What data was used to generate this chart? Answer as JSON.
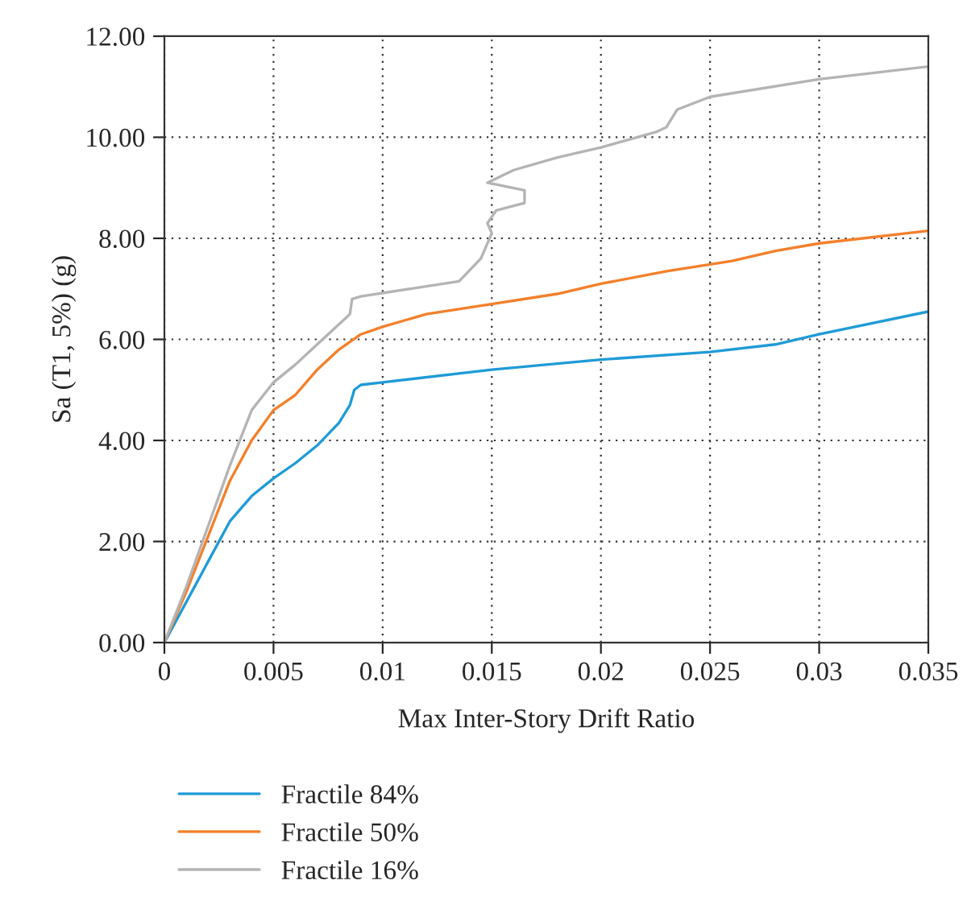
{
  "chart_data": {
    "type": "line",
    "xlabel": "Max Inter-Story Drift Ratio",
    "ylabel": "Sa (T1, 5%) (g)",
    "xlim": [
      0,
      0.035
    ],
    "xticks": [
      0,
      0.005,
      0.01,
      0.015,
      0.02,
      0.025,
      0.03,
      0.035
    ],
    "ylim": [
      0,
      12
    ],
    "yticks": [
      {
        "value": 0,
        "label": "0.00"
      },
      {
        "value": 2,
        "label": "2.00"
      },
      {
        "value": 4,
        "label": "4.00"
      },
      {
        "value": 6,
        "label": "6.00"
      },
      {
        "value": 8,
        "label": "8.00"
      },
      {
        "value": 10,
        "label": "10.00"
      },
      {
        "value": 12,
        "label": "12.00"
      }
    ],
    "grid": true,
    "legend": "bottom",
    "marker": "none",
    "line_style": "solid",
    "series": [
      {
        "name": "Fractile 84%",
        "color": "#1f9bd7",
        "x": [
          0,
          0.001,
          0.002,
          0.003,
          0.004,
          0.005,
          0.006,
          0.007,
          0.008,
          0.0085,
          0.0087,
          0.009,
          0.01,
          0.015,
          0.02,
          0.025,
          0.028,
          0.03,
          0.035
        ],
        "values": [
          0,
          0.8,
          1.6,
          2.4,
          2.9,
          3.25,
          3.55,
          3.9,
          4.35,
          4.7,
          5.0,
          5.1,
          5.15,
          5.4,
          5.6,
          5.75,
          5.9,
          6.1,
          6.55
        ]
      },
      {
        "name": "Fractile 50%",
        "color": "#f47f2a",
        "x": [
          0,
          0.001,
          0.002,
          0.003,
          0.004,
          0.005,
          0.006,
          0.007,
          0.008,
          0.0085,
          0.009,
          0.01,
          0.012,
          0.015,
          0.018,
          0.02,
          0.023,
          0.026,
          0.028,
          0.03,
          0.035
        ],
        "values": [
          0,
          1.0,
          2.1,
          3.2,
          4.0,
          4.6,
          4.9,
          5.4,
          5.8,
          5.95,
          6.1,
          6.25,
          6.5,
          6.7,
          6.9,
          7.1,
          7.35,
          7.55,
          7.75,
          7.9,
          8.15
        ]
      },
      {
        "name": "Fractile 16%",
        "color": "#b4b4b4",
        "x": [
          0,
          0.001,
          0.002,
          0.003,
          0.004,
          0.005,
          0.006,
          0.007,
          0.008,
          0.0085,
          0.0086,
          0.009,
          0.012,
          0.0135,
          0.0145,
          0.015,
          0.0148,
          0.0152,
          0.0165,
          0.0165,
          0.0148,
          0.016,
          0.018,
          0.02,
          0.0225,
          0.023,
          0.0235,
          0.025,
          0.03,
          0.035
        ],
        "values": [
          0,
          1.1,
          2.3,
          3.5,
          4.6,
          5.15,
          5.5,
          5.9,
          6.3,
          6.5,
          6.8,
          6.85,
          7.05,
          7.15,
          7.6,
          8.1,
          8.3,
          8.55,
          8.7,
          8.95,
          9.1,
          9.35,
          9.6,
          9.8,
          10.1,
          10.2,
          10.55,
          10.8,
          11.15,
          11.4
        ]
      }
    ]
  }
}
